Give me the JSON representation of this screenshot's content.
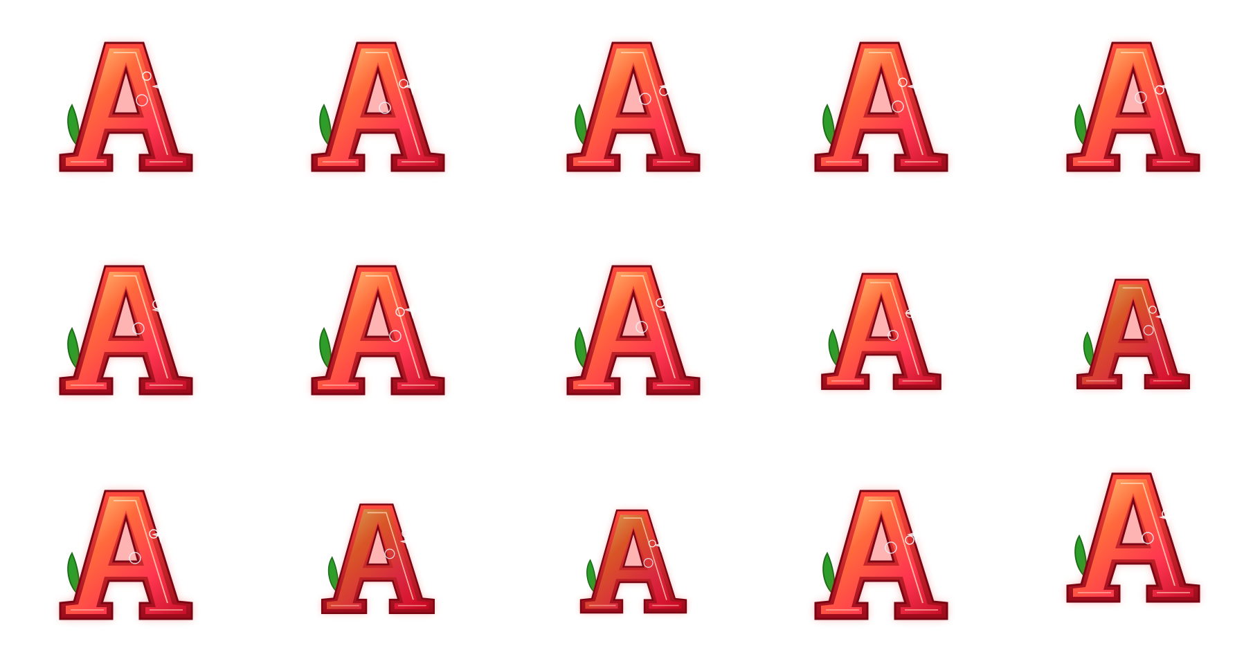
{
  "sheet": {
    "background": "#ffffff",
    "rows": 3,
    "columns": 5
  },
  "symbol": {
    "glyph": "A",
    "icon": "letter-a-symbol-icon",
    "colors": {
      "outer": "#e0141c",
      "glow": "#ff3a3a",
      "highlight": "#ffd27a",
      "inner": "#ff5a5a",
      "leaf": "#2e9e2a"
    }
  },
  "frames": [
    {
      "glyph": "A"
    },
    {
      "glyph": "A"
    },
    {
      "glyph": "A"
    },
    {
      "glyph": "A"
    },
    {
      "glyph": "A"
    },
    {
      "glyph": "A"
    },
    {
      "glyph": "A"
    },
    {
      "glyph": "A"
    },
    {
      "glyph": "A"
    },
    {
      "glyph": "A"
    },
    {
      "glyph": "A"
    },
    {
      "glyph": "A"
    },
    {
      "glyph": "A"
    },
    {
      "glyph": "A"
    },
    {
      "glyph": "A"
    }
  ]
}
